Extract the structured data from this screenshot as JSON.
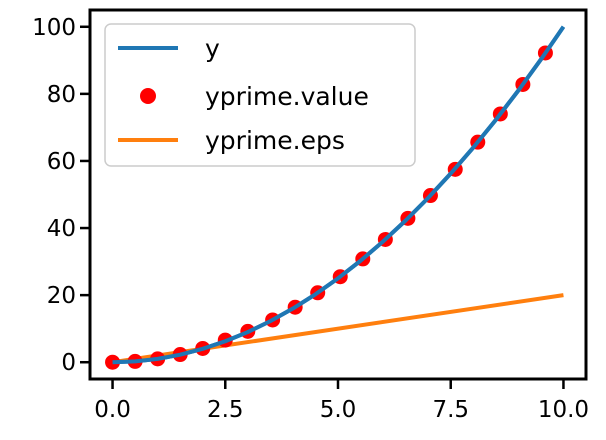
{
  "chart_data": {
    "type": "line",
    "title": "",
    "xlabel": "",
    "ylabel": "",
    "xlim": [
      -0.5,
      10.5
    ],
    "ylim": [
      -5,
      105
    ],
    "xticks": [
      0.0,
      2.5,
      5.0,
      7.5,
      10.0
    ],
    "xtick_labels": [
      "0.0",
      "2.5",
      "5.0",
      "7.5",
      "10.0"
    ],
    "yticks": [
      0,
      20,
      40,
      60,
      80,
      100
    ],
    "ytick_labels": [
      "0",
      "20",
      "40",
      "60",
      "80",
      "100"
    ],
    "grid": false,
    "legend_position": "upper-left",
    "series": [
      {
        "name": "y",
        "type": "line",
        "color": "#1f77b4",
        "x": [
          0,
          0.5,
          1,
          1.5,
          2,
          2.5,
          3,
          3.5,
          4,
          4.5,
          5,
          5.5,
          6,
          6.5,
          7,
          7.5,
          8,
          8.5,
          9,
          9.5,
          10
        ],
        "y": [
          0,
          0.25,
          1,
          2.25,
          4,
          6.25,
          9,
          12.25,
          16,
          20.25,
          25,
          30.25,
          36,
          42.25,
          49,
          56.25,
          64,
          72.25,
          81,
          90.25,
          100
        ]
      },
      {
        "name": "yprime.value",
        "type": "scatter",
        "color": "#ff0000",
        "x": [
          0,
          0.5,
          1.0,
          1.5,
          2.0,
          2.5,
          3.0,
          3.55,
          4.05,
          4.55,
          5.05,
          5.55,
          6.05,
          6.55,
          7.05,
          7.6,
          8.1,
          8.6,
          9.1,
          9.6
        ],
        "y": [
          0,
          0.25,
          1.0,
          2.3,
          4.1,
          6.6,
          9.2,
          12.6,
          16.4,
          20.7,
          25.5,
          30.8,
          36.6,
          42.9,
          49.7,
          57.5,
          65.6,
          74.0,
          82.8,
          92.2
        ]
      },
      {
        "name": "yprime.eps",
        "type": "line",
        "color": "#ff7f0e",
        "x": [
          0,
          10
        ],
        "y": [
          0,
          20
        ]
      }
    ]
  }
}
